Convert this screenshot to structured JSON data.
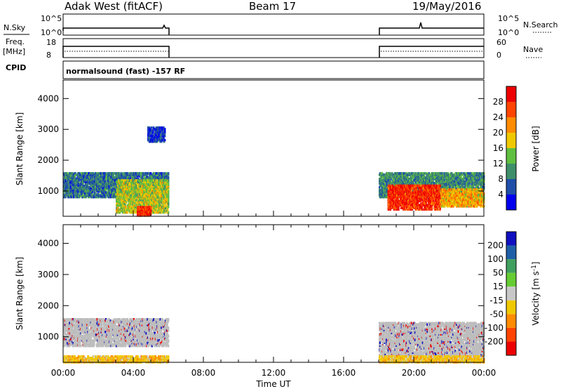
{
  "header": {
    "station": "Adak West (fitACF)",
    "beam": "Beam 17",
    "date": "19/May/2016"
  },
  "status_panels": {
    "nsky_label": "N.Sky",
    "nsearch_label": "N.Search",
    "noise_ticks": [
      "10^5",
      "10^0"
    ],
    "freq_label_1": "Freq.",
    "freq_label_2": "[MHz]",
    "freq_ticks": [
      "18",
      "8"
    ],
    "nave_label": "Nave",
    "nave_ticks": [
      "60",
      "0"
    ],
    "cpid_label": "CPID",
    "cpid_text": "normalsound (fast) -157 RF"
  },
  "colors": {
    "power_scale": [
      "#0000ee",
      "#1f4fa8",
      "#3f8f6a",
      "#5fbf3f",
      "#f0c800",
      "#ff8c00",
      "#ff4400",
      "#ee0000"
    ],
    "velocity_scale": [
      "#1010c0",
      "#1f5fa8",
      "#3f9f5f",
      "#66cc33",
      "#c8c8c8",
      "#f0c800",
      "#ff8c00",
      "#ff4400",
      "#ee0000"
    ],
    "ground_scatter": "#bdbdbd"
  },
  "chart_data": [
    {
      "type": "heatmap",
      "title": "Power",
      "ylabel": "Slant Range [km]",
      "xlabel": "Time UT",
      "xlim_hours": [
        0,
        24
      ],
      "ylim_km": [
        180,
        4600
      ],
      "yticks": [
        "1000",
        "2000",
        "3000",
        "4000"
      ],
      "colorbar_label": "Power [dB]",
      "colorbar_ticks": [
        "4",
        "8",
        "12",
        "16",
        "20",
        "24",
        "28"
      ],
      "colorbar_range": [
        0,
        32
      ],
      "scatter_regions": [
        {
          "t": [
            0.0,
            6.0
          ],
          "range_km": [
            800,
            1600
          ],
          "level_db": 8
        },
        {
          "t": [
            3.0,
            6.0
          ],
          "range_km": [
            300,
            1400
          ],
          "level_db": 16
        },
        {
          "t": [
            4.2,
            5.0
          ],
          "range_km": [
            200,
            500
          ],
          "level_db": 28
        },
        {
          "t": [
            4.8,
            5.8
          ],
          "range_km": [
            2600,
            3100
          ],
          "level_db": 4
        },
        {
          "t": [
            18.0,
            24.0
          ],
          "range_km": [
            800,
            1600
          ],
          "level_db": 10
        },
        {
          "t": [
            18.5,
            21.5
          ],
          "range_km": [
            400,
            1200
          ],
          "level_db": 28
        },
        {
          "t": [
            21.5,
            24.0
          ],
          "range_km": [
            500,
            1100
          ],
          "level_db": 20
        }
      ]
    },
    {
      "type": "heatmap",
      "title": "Velocity",
      "ylabel": "Slant Range [km]",
      "xlabel": "Time UT",
      "xlim_hours": [
        0,
        24
      ],
      "ylim_km": [
        180,
        4600
      ],
      "yticks": [
        "1000",
        "2000",
        "3000",
        "4000"
      ],
      "xticks": [
        "00:00",
        "04:00",
        "08:00",
        "12:00",
        "16:00",
        "20:00",
        "00:00"
      ],
      "colorbar_label": "Velocity [m s^-1]",
      "colorbar_ticks": [
        "200",
        "100",
        "50",
        "15",
        "-15",
        "-50",
        "-100",
        "-200"
      ],
      "scatter_regions": [
        {
          "t": [
            0.0,
            6.0
          ],
          "range_km": [
            700,
            1600
          ],
          "velocity": 0
        },
        {
          "t": [
            18.0,
            24.0
          ],
          "range_km": [
            400,
            1500
          ],
          "velocity": 0
        },
        {
          "t": [
            0.0,
            6.0
          ],
          "range_km": [
            180,
            400
          ],
          "velocity": -60
        },
        {
          "t": [
            18.0,
            24.0
          ],
          "range_km": [
            180,
            400
          ],
          "velocity": -40
        }
      ]
    }
  ]
}
